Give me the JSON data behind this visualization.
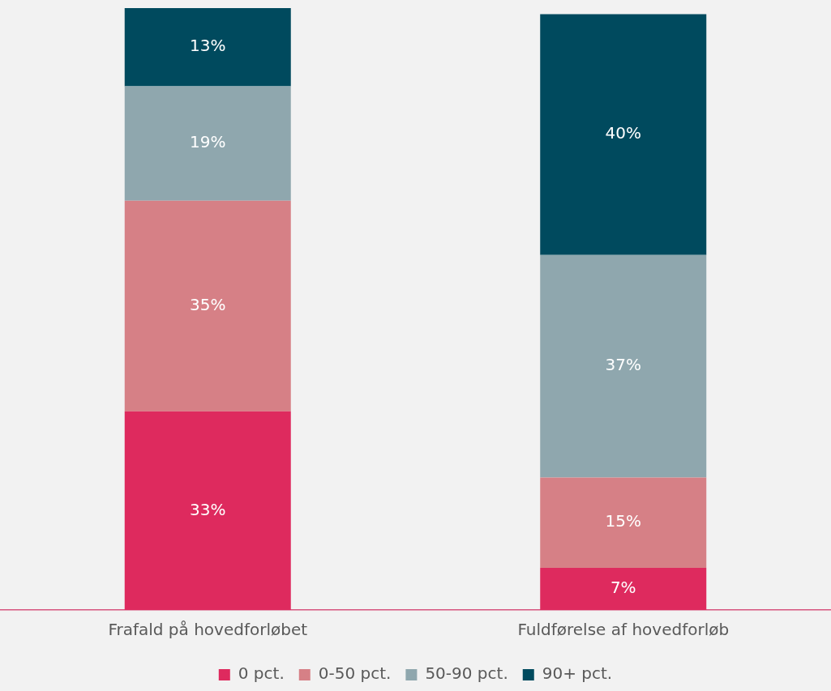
{
  "chart_data": {
    "type": "bar",
    "stacked": true,
    "categories": [
      "Frafald på hovedforløbet",
      "Fuldførelse af hovedforløb"
    ],
    "series": [
      {
        "name": "0 pct.",
        "color": "#de2a5e",
        "values": [
          33,
          7
        ],
        "value_labels": [
          "33%",
          "7%"
        ]
      },
      {
        "name": "0-50 pct.",
        "color": "#d68086",
        "values": [
          35,
          15
        ],
        "value_labels": [
          "35%",
          "15%"
        ]
      },
      {
        "name": "50-90 pct.",
        "color": "#8fa7ae",
        "values": [
          19,
          37
        ],
        "value_labels": [
          "19%",
          "37%"
        ]
      },
      {
        "name": "90+ pct.",
        "color": "#004a5e",
        "values": [
          13,
          40
        ],
        "value_labels": [
          "13%",
          "40%"
        ]
      }
    ],
    "legend": "bottom"
  }
}
